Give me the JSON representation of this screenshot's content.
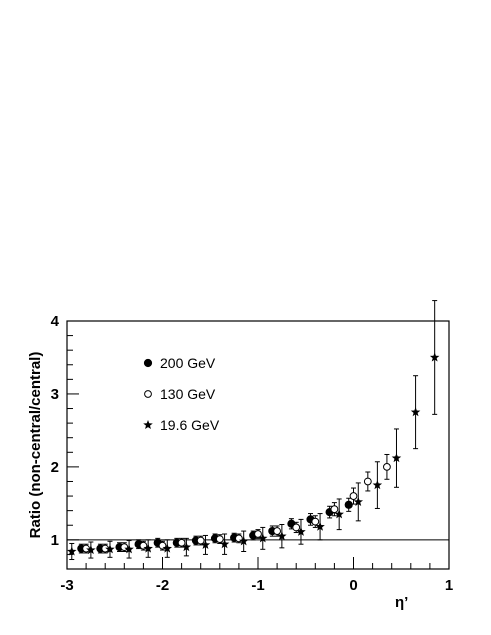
{
  "chart_data": {
    "type": "scatter",
    "xlabel": "η’",
    "ylabel": "Ratio (non-central/central)",
    "xlim": [
      -3,
      1
    ],
    "ylim": [
      0.6,
      4
    ],
    "xticks": [
      "-3",
      "-2",
      "-1",
      "0",
      "1"
    ],
    "yticks": [
      "1",
      "2",
      "3",
      "4"
    ],
    "reference_line": 1.0,
    "grid": false,
    "legend_position": "top-left",
    "series": [
      {
        "name": "200  GeV",
        "marker": "filled-circle",
        "points": [
          {
            "x": -2.85,
            "y": 0.88,
            "err": 0.06
          },
          {
            "x": -2.65,
            "y": 0.88,
            "err": 0.06
          },
          {
            "x": -2.45,
            "y": 0.9,
            "err": 0.06
          },
          {
            "x": -2.25,
            "y": 0.94,
            "err": 0.06
          },
          {
            "x": -2.05,
            "y": 0.96,
            "err": 0.06
          },
          {
            "x": -1.85,
            "y": 0.96,
            "err": 0.06
          },
          {
            "x": -1.65,
            "y": 0.99,
            "err": 0.06
          },
          {
            "x": -1.45,
            "y": 1.02,
            "err": 0.06
          },
          {
            "x": -1.25,
            "y": 1.03,
            "err": 0.06
          },
          {
            "x": -1.05,
            "y": 1.06,
            "err": 0.06
          },
          {
            "x": -0.85,
            "y": 1.12,
            "err": 0.07
          },
          {
            "x": -0.65,
            "y": 1.22,
            "err": 0.07
          },
          {
            "x": -0.45,
            "y": 1.28,
            "err": 0.08
          },
          {
            "x": -0.25,
            "y": 1.38,
            "err": 0.08
          },
          {
            "x": -0.05,
            "y": 1.48,
            "err": 0.09
          }
        ]
      },
      {
        "name": "130  GeV",
        "marker": "open-circle",
        "points": [
          {
            "x": -2.8,
            "y": 0.88,
            "err": 0.06
          },
          {
            "x": -2.6,
            "y": 0.88,
            "err": 0.06
          },
          {
            "x": -2.4,
            "y": 0.9,
            "err": 0.06
          },
          {
            "x": -2.2,
            "y": 0.92,
            "err": 0.06
          },
          {
            "x": -2.0,
            "y": 0.92,
            "err": 0.06
          },
          {
            "x": -1.8,
            "y": 0.96,
            "err": 0.06
          },
          {
            "x": -1.6,
            "y": 0.99,
            "err": 0.06
          },
          {
            "x": -1.4,
            "y": 1.01,
            "err": 0.06
          },
          {
            "x": -1.2,
            "y": 1.02,
            "err": 0.06
          },
          {
            "x": -1.0,
            "y": 1.08,
            "err": 0.06
          },
          {
            "x": -0.8,
            "y": 1.12,
            "err": 0.07
          },
          {
            "x": -0.6,
            "y": 1.17,
            "err": 0.07
          },
          {
            "x": -0.4,
            "y": 1.25,
            "err": 0.08
          },
          {
            "x": -0.2,
            "y": 1.42,
            "err": 0.09
          },
          {
            "x": -0.0,
            "y": 1.6,
            "err": 0.11
          },
          {
            "x": 0.15,
            "y": 1.8,
            "err": 0.13
          },
          {
            "x": 0.35,
            "y": 2.0,
            "err": 0.17
          }
        ]
      },
      {
        "name": "19.6 GeV",
        "marker": "star",
        "points": [
          {
            "x": -2.95,
            "y": 0.84,
            "err": 0.11
          },
          {
            "x": -2.75,
            "y": 0.86,
            "err": 0.11
          },
          {
            "x": -2.55,
            "y": 0.87,
            "err": 0.11
          },
          {
            "x": -2.35,
            "y": 0.87,
            "err": 0.12
          },
          {
            "x": -2.15,
            "y": 0.88,
            "err": 0.12
          },
          {
            "x": -1.95,
            "y": 0.88,
            "err": 0.12
          },
          {
            "x": -1.75,
            "y": 0.9,
            "err": 0.12
          },
          {
            "x": -1.55,
            "y": 0.93,
            "err": 0.13
          },
          {
            "x": -1.35,
            "y": 0.94,
            "err": 0.14
          },
          {
            "x": -1.15,
            "y": 0.98,
            "err": 0.14
          },
          {
            "x": -0.95,
            "y": 1.02,
            "err": 0.15
          },
          {
            "x": -0.75,
            "y": 1.05,
            "err": 0.16
          },
          {
            "x": -0.55,
            "y": 1.11,
            "err": 0.17
          },
          {
            "x": -0.35,
            "y": 1.18,
            "err": 0.18
          },
          {
            "x": -0.15,
            "y": 1.35,
            "err": 0.21
          },
          {
            "x": 0.05,
            "y": 1.52,
            "err": 0.26
          },
          {
            "x": 0.25,
            "y": 1.75,
            "err": 0.32
          },
          {
            "x": 0.45,
            "y": 2.12,
            "err": 0.4
          },
          {
            "x": 0.65,
            "y": 2.75,
            "err": 0.5
          },
          {
            "x": 0.85,
            "y": 3.5,
            "err": 0.78
          }
        ]
      }
    ]
  }
}
